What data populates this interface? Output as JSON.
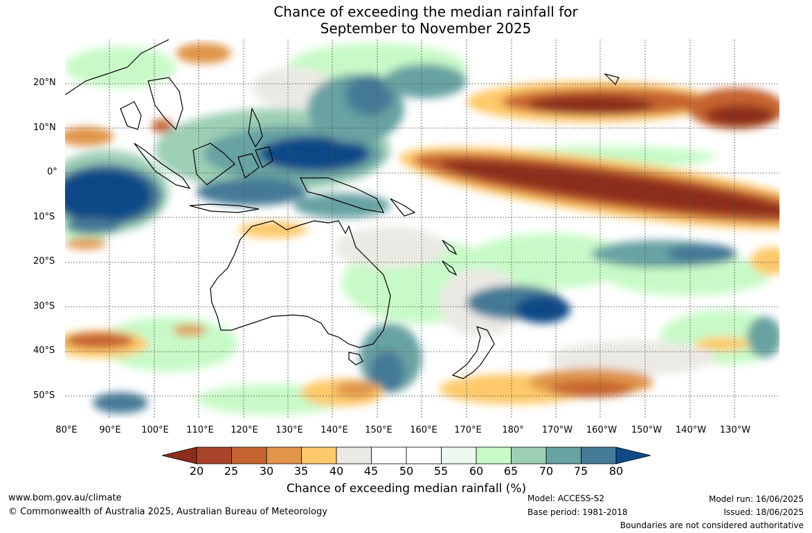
{
  "title": {
    "line1": "Chance of exceeding the median rainfall for",
    "line2": "September to November 2025"
  },
  "lat_labels": [
    "20°N",
    "10°N",
    "0°",
    "10°S",
    "20°S",
    "30°S",
    "40°S",
    "50°S"
  ],
  "lon_labels": [
    "80°E",
    "90°E",
    "100°E",
    "110°E",
    "120°E",
    "130°E",
    "140°E",
    "150°E",
    "160°E",
    "170°E",
    "180°",
    "170°W",
    "160°W",
    "150°W",
    "140°W",
    "130°W"
  ],
  "colorbar": {
    "ticks": [
      "20",
      "25",
      "30",
      "35",
      "40",
      "45",
      "50",
      "55",
      "60",
      "65",
      "70",
      "75",
      "80"
    ],
    "colors": [
      "#8c2d1b",
      "#a8452a",
      "#c6642f",
      "#e0954a",
      "#fec96a",
      "#ebe9e4",
      "#ffffff",
      "#ffffff",
      "#eef8ee",
      "#c8fac8",
      "#9dcfb6",
      "#68a2a2",
      "#457a96",
      "#0e4a87"
    ],
    "label": "Chance of exceeding median rainfall (%)"
  },
  "footer": {
    "website": "www.bom.gov.au/climate",
    "copyright": "© Commonwealth of Australia 2025, Australian Bureau of Meteorology",
    "model": "Model: ACCESS-S2",
    "base_period": "Base period: 1981-2018",
    "model_run": "Model run: 16/06/2025",
    "issued": "Issued: 18/06/2025",
    "disclaimer": "Boundaries are not considered authoritative"
  }
}
